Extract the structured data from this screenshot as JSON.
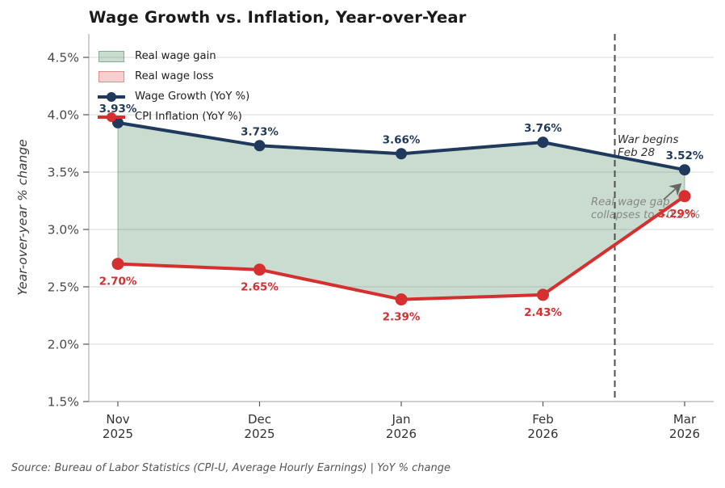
{
  "title": "Wage Growth vs. Inflation, Year-over-Year",
  "footer": "Source: Bureau of Labor Statistics (CPI-U, Average Hourly Earnings)  |  YoY % change",
  "colors": {
    "wage_line": "#1f3a5c",
    "cpi_line": "#d62f2f",
    "gain_fill": "rgba(76,139,97,0.30)",
    "gain_edge": "rgba(76,139,97,0.55)",
    "loss_fill": "rgba(214,80,80,0.27)",
    "loss_edge": "rgba(214,80,80,0.55)",
    "gridline": "#d9d9d9",
    "spine": "#b0b0b0",
    "tick": "#555555",
    "vline": "#4f4f4f",
    "annotation_dark": "#2e2e2e",
    "annotation_gray": "#878787",
    "arrow": "#666666"
  },
  "legend": {
    "items": [
      {
        "id": "gain",
        "label": "Real wage gain",
        "swatch": "patch-green"
      },
      {
        "id": "loss",
        "label": "Real wage loss",
        "swatch": "patch-pink"
      },
      {
        "id": "wage",
        "label": "Wage Growth (YoY %)",
        "swatch": "line-navy"
      },
      {
        "id": "cpi",
        "label": "CPI Inflation (YoY %)",
        "swatch": "line-red"
      }
    ]
  },
  "chart_data": {
    "type": "line",
    "title": "Wage Growth vs. Inflation, Year-over-Year",
    "ylabel": "Year-over-year % change",
    "xlabel": "",
    "grid": true,
    "legend_position": "upper-left",
    "ylim": [
      1.5,
      4.7
    ],
    "categories": [
      {
        "month": "Nov",
        "year": "2025"
      },
      {
        "month": "Dec",
        "year": "2025"
      },
      {
        "month": "Jan",
        "year": "2026"
      },
      {
        "month": "Feb",
        "year": "2026"
      },
      {
        "month": "Mar",
        "year": "2026"
      }
    ],
    "y_ticks": [
      {
        "value": 1.5,
        "label": "1.5%"
      },
      {
        "value": 2.0,
        "label": "2.0%"
      },
      {
        "value": 2.5,
        "label": "2.5%"
      },
      {
        "value": 3.0,
        "label": "3.0%"
      },
      {
        "value": 3.5,
        "label": "3.5%"
      },
      {
        "value": 4.0,
        "label": "4.0%"
      },
      {
        "value": 4.5,
        "label": "4.5%"
      }
    ],
    "series": [
      {
        "name": "Wage Growth (YoY %)",
        "color": "#1f3a5c",
        "values": [
          3.93,
          3.73,
          3.66,
          3.76,
          3.52
        ],
        "labels": [
          "3.93%",
          "3.73%",
          "3.66%",
          "3.76%",
          "3.52%"
        ]
      },
      {
        "name": "CPI Inflation (YoY %)",
        "color": "#d62f2f",
        "values": [
          2.7,
          2.65,
          2.39,
          2.43,
          3.29
        ],
        "labels": [
          "2.70%",
          "2.65%",
          "2.39%",
          "2.43%",
          "3.29%"
        ]
      }
    ],
    "fill_between": {
      "gain_label": "Real wage gain",
      "loss_label": "Real wage loss"
    },
    "annotations": [
      {
        "id": "war",
        "lines": [
          "War begins",
          "Feb 28"
        ],
        "style": "dark"
      },
      {
        "id": "gap",
        "lines": [
          "Real wage gap",
          "collapses to +0.23%"
        ],
        "style": "gray"
      }
    ],
    "event_line": {
      "label": "War begins Feb 28",
      "between": [
        "Feb 2026",
        "Mar 2026"
      ]
    }
  }
}
